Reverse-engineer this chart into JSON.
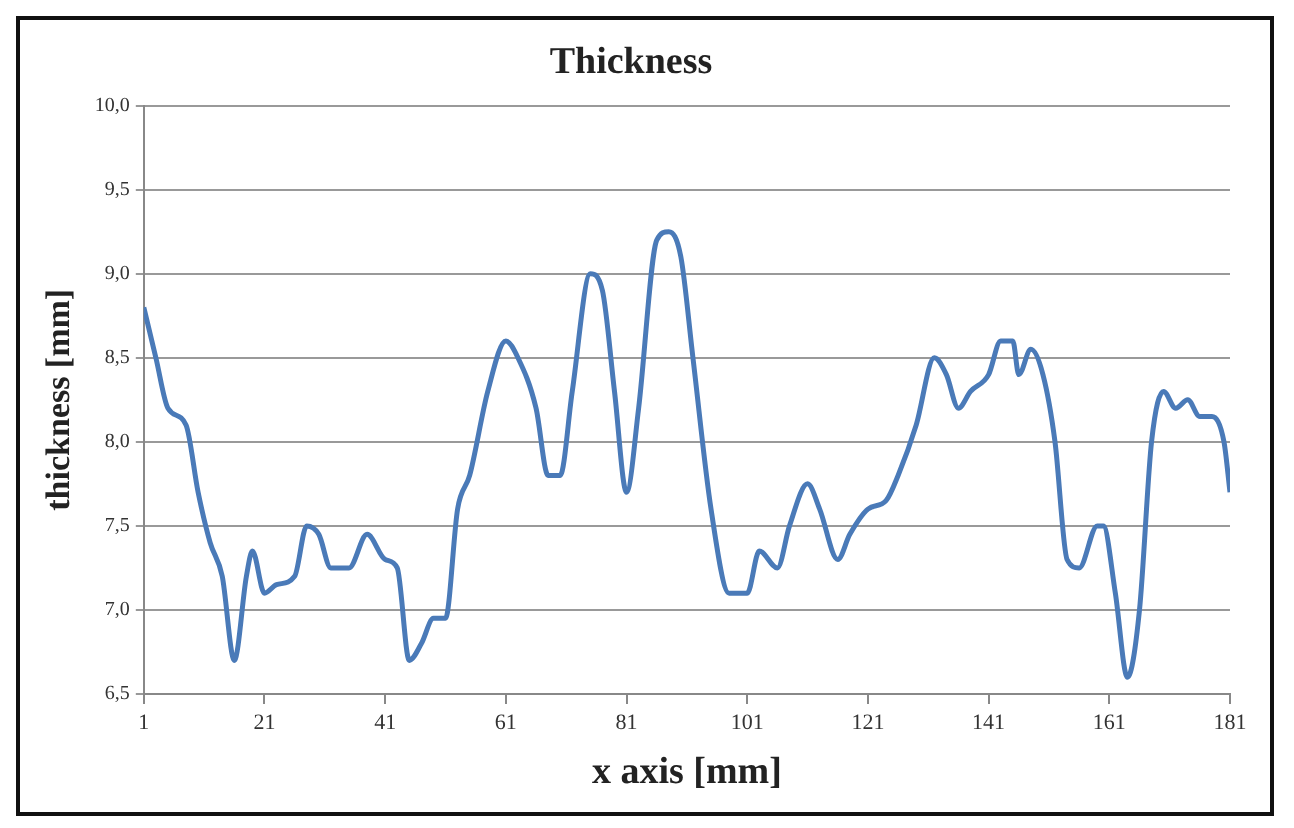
{
  "chart_data": {
    "type": "line",
    "title": "Thickness",
    "xlabel": "x axis [mm]",
    "ylabel": "thickness [mm]",
    "x": [
      1,
      3,
      5,
      8,
      10,
      12,
      14,
      16,
      18,
      19,
      21,
      23,
      26,
      28,
      30,
      32,
      35,
      38,
      41,
      43,
      45,
      47,
      49,
      51,
      53,
      55,
      58,
      61,
      63,
      66,
      68,
      70,
      72,
      75,
      77,
      79,
      81,
      83,
      86,
      88,
      90,
      92,
      95,
      98,
      101,
      103,
      106,
      108,
      111,
      113,
      116,
      118,
      121,
      124,
      126,
      129,
      132,
      134,
      136,
      138,
      141,
      143,
      145,
      146,
      148,
      150,
      152,
      154,
      156,
      159,
      160,
      162,
      164,
      166,
      168,
      170,
      172,
      174,
      176,
      178,
      180,
      181
    ],
    "series": [
      {
        "color": "#4a7ab8",
        "values": [
          8.8,
          8.5,
          8.2,
          8.1,
          7.7,
          7.4,
          7.2,
          6.7,
          7.2,
          7.35,
          7.1,
          7.15,
          7.2,
          7.5,
          7.45,
          7.25,
          7.25,
          7.45,
          7.3,
          7.25,
          6.7,
          6.8,
          6.95,
          6.95,
          7.6,
          7.8,
          8.3,
          8.6,
          8.5,
          8.2,
          7.8,
          7.8,
          8.3,
          9.0,
          8.9,
          8.3,
          7.7,
          8.2,
          9.2,
          9.25,
          9.1,
          8.5,
          7.6,
          7.1,
          7.1,
          7.35,
          7.25,
          7.5,
          7.75,
          7.6,
          7.3,
          7.45,
          7.6,
          7.65,
          7.8,
          8.1,
          8.5,
          8.4,
          8.2,
          8.3,
          8.4,
          8.6,
          8.6,
          8.4,
          8.55,
          8.4,
          8.0,
          7.3,
          7.25,
          7.5,
          7.5,
          7.1,
          6.6,
          7.0,
          8.0,
          8.3,
          8.2,
          8.25,
          8.15,
          8.15,
          8.0,
          7.7
        ]
      }
    ],
    "xlim": [
      1,
      181
    ],
    "xticks": [
      1,
      21,
      41,
      61,
      81,
      101,
      121,
      141,
      161,
      181
    ],
    "ylim": [
      6.5,
      10.0
    ],
    "yticks": [
      {
        "value": 6.5,
        "label": "6,5"
      },
      {
        "value": 7.0,
        "label": "7,0"
      },
      {
        "value": 7.5,
        "label": "7,5"
      },
      {
        "value": 8.0,
        "label": "8,0"
      },
      {
        "value": 8.5,
        "label": "8,5"
      },
      {
        "value": 9.0,
        "label": "9,0"
      },
      {
        "value": 9.5,
        "label": "9,5"
      },
      {
        "value": 10.0,
        "label": "10,0"
      }
    ],
    "grid": "y",
    "legend": false,
    "marker": "none",
    "line_style": "solid"
  }
}
